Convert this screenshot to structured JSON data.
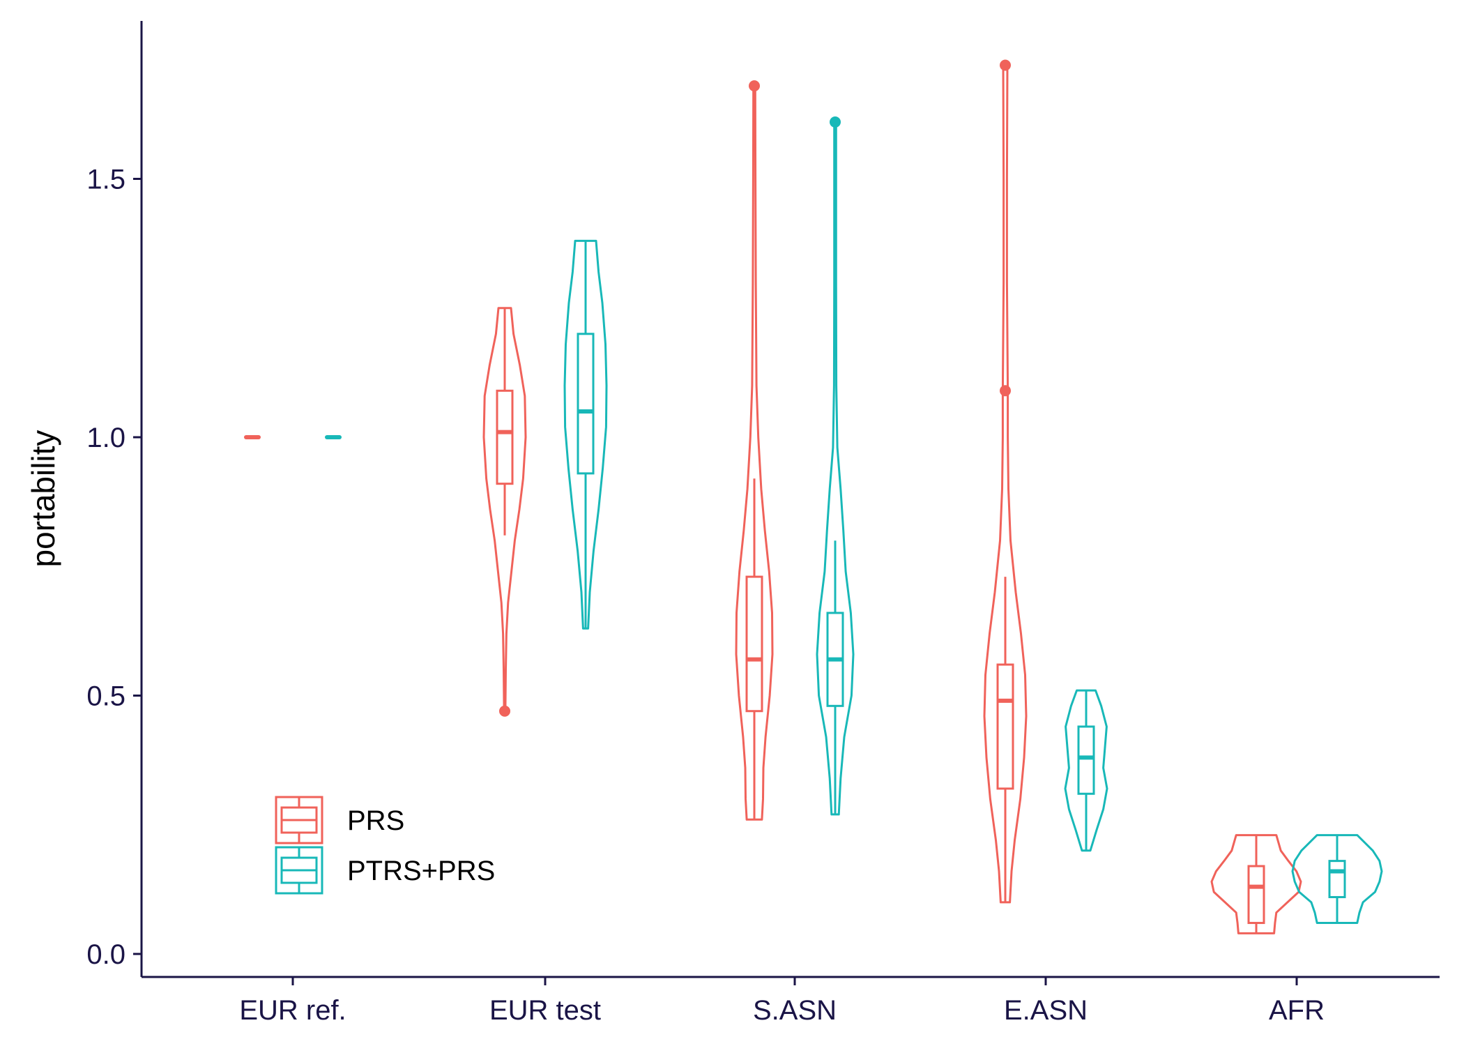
{
  "chart_data": {
    "type": "violin",
    "title": "",
    "xlabel": "",
    "ylabel": "portability",
    "ylim": [
      -0.04,
      1.75
    ],
    "yticks": [
      0.0,
      0.5,
      1.0,
      1.5
    ],
    "ytick_labels": [
      "0.0",
      "0.5",
      "1.0",
      "1.5"
    ],
    "grid": false,
    "legend_position": "bottom-left",
    "categories": [
      "EUR ref.",
      "EUR test",
      "S.ASN",
      "E.ASN",
      "AFR"
    ],
    "series": [
      {
        "name": "PRS",
        "color": "#F0625A",
        "groups": [
          {
            "category": "EUR ref.",
            "min": 1.0,
            "q1": 1.0,
            "median": 1.0,
            "q3": 1.0,
            "max": 1.0,
            "whisker_low": 1.0,
            "whisker_high": 1.0,
            "outliers": [],
            "density": [
              [
                1.0,
                0.1
              ]
            ]
          },
          {
            "category": "EUR test",
            "min": 0.47,
            "q1": 0.91,
            "median": 1.01,
            "q3": 1.09,
            "max": 1.25,
            "whisker_low": 0.81,
            "whisker_high": 1.25,
            "outliers": [
              0.47
            ],
            "density": [
              [
                0.47,
                0.03
              ],
              [
                0.55,
                0.05
              ],
              [
                0.62,
                0.08
              ],
              [
                0.68,
                0.16
              ],
              [
                0.74,
                0.32
              ],
              [
                0.8,
                0.48
              ],
              [
                0.86,
                0.7
              ],
              [
                0.92,
                0.88
              ],
              [
                1.0,
                1.0
              ],
              [
                1.08,
                0.96
              ],
              [
                1.14,
                0.72
              ],
              [
                1.2,
                0.42
              ],
              [
                1.25,
                0.3
              ]
            ]
          },
          {
            "category": "S.ASN",
            "min": 0.26,
            "q1": 0.47,
            "median": 0.57,
            "q3": 0.73,
            "max": 1.68,
            "whisker_low": 0.26,
            "whisker_high": 0.92,
            "outliers": [
              1.68
            ],
            "density": [
              [
                0.26,
                0.42
              ],
              [
                0.3,
                0.48
              ],
              [
                0.36,
                0.5
              ],
              [
                0.42,
                0.62
              ],
              [
                0.5,
                0.85
              ],
              [
                0.58,
                1.0
              ],
              [
                0.66,
                0.98
              ],
              [
                0.74,
                0.82
              ],
              [
                0.82,
                0.58
              ],
              [
                0.9,
                0.38
              ],
              [
                1.0,
                0.22
              ],
              [
                1.1,
                0.12
              ],
              [
                1.3,
                0.08
              ],
              [
                1.5,
                0.06
              ],
              [
                1.68,
                0.05
              ]
            ]
          },
          {
            "category": "E.ASN",
            "min": 0.1,
            "q1": 0.32,
            "median": 0.49,
            "q3": 0.56,
            "max": 1.72,
            "whisker_low": 0.1,
            "whisker_high": 0.73,
            "outliers": [
              1.09,
              1.72
            ],
            "density": [
              [
                0.1,
                0.22
              ],
              [
                0.16,
                0.3
              ],
              [
                0.22,
                0.45
              ],
              [
                0.3,
                0.72
              ],
              [
                0.38,
                0.9
              ],
              [
                0.46,
                1.0
              ],
              [
                0.54,
                0.95
              ],
              [
                0.62,
                0.75
              ],
              [
                0.7,
                0.5
              ],
              [
                0.8,
                0.25
              ],
              [
                0.9,
                0.15
              ],
              [
                1.0,
                0.12
              ],
              [
                1.09,
                0.12
              ],
              [
                1.3,
                0.08
              ],
              [
                1.5,
                0.08
              ],
              [
                1.72,
                0.1
              ]
            ]
          },
          {
            "category": "AFR",
            "min": 0.04,
            "q1": 0.06,
            "median": 0.13,
            "q3": 0.17,
            "max": 0.23,
            "whisker_low": 0.04,
            "whisker_high": 0.23,
            "outliers": [],
            "density": [
              [
                0.04,
                0.4
              ],
              [
                0.06,
                0.42
              ],
              [
                0.08,
                0.45
              ],
              [
                0.1,
                0.7
              ],
              [
                0.12,
                0.95
              ],
              [
                0.14,
                1.0
              ],
              [
                0.16,
                0.9
              ],
              [
                0.18,
                0.72
              ],
              [
                0.2,
                0.55
              ],
              [
                0.23,
                0.45
              ]
            ]
          }
        ]
      },
      {
        "name": "PTRS+PRS",
        "color": "#18B8B8",
        "groups": [
          {
            "category": "EUR ref.",
            "min": 1.0,
            "q1": 1.0,
            "median": 1.0,
            "q3": 1.0,
            "max": 1.0,
            "whisker_low": 1.0,
            "whisker_high": 1.0,
            "outliers": [],
            "density": [
              [
                1.0,
                0.1
              ]
            ]
          },
          {
            "category": "EUR test",
            "min": 0.63,
            "q1": 0.93,
            "median": 1.05,
            "q3": 1.2,
            "max": 1.38,
            "whisker_low": 0.63,
            "whisker_high": 1.38,
            "outliers": [],
            "density": [
              [
                0.63,
                0.12
              ],
              [
                0.7,
                0.2
              ],
              [
                0.78,
                0.38
              ],
              [
                0.86,
                0.62
              ],
              [
                0.94,
                0.82
              ],
              [
                1.02,
                0.98
              ],
              [
                1.1,
                1.0
              ],
              [
                1.18,
                0.95
              ],
              [
                1.26,
                0.8
              ],
              [
                1.32,
                0.62
              ],
              [
                1.38,
                0.5
              ]
            ]
          },
          {
            "category": "S.ASN",
            "min": 0.27,
            "q1": 0.48,
            "median": 0.57,
            "q3": 0.66,
            "max": 1.61,
            "whisker_low": 0.27,
            "whisker_high": 0.8,
            "outliers": [
              1.61
            ],
            "density": [
              [
                0.27,
                0.2
              ],
              [
                0.34,
                0.3
              ],
              [
                0.42,
                0.5
              ],
              [
                0.5,
                0.9
              ],
              [
                0.58,
                1.0
              ],
              [
                0.66,
                0.86
              ],
              [
                0.74,
                0.58
              ],
              [
                0.82,
                0.45
              ],
              [
                0.9,
                0.3
              ],
              [
                0.98,
                0.12
              ],
              [
                1.1,
                0.06
              ],
              [
                1.3,
                0.05
              ],
              [
                1.5,
                0.05
              ],
              [
                1.61,
                0.05
              ]
            ]
          },
          {
            "category": "E.ASN",
            "min": 0.2,
            "q1": 0.31,
            "median": 0.38,
            "q3": 0.44,
            "max": 0.51,
            "whisker_low": 0.2,
            "whisker_high": 0.51,
            "outliers": [],
            "density": [
              [
                0.2,
                0.2
              ],
              [
                0.24,
                0.5
              ],
              [
                0.28,
                0.82
              ],
              [
                0.32,
                1.0
              ],
              [
                0.36,
                0.82
              ],
              [
                0.4,
                0.9
              ],
              [
                0.44,
                0.98
              ],
              [
                0.48,
                0.72
              ],
              [
                0.51,
                0.45
              ]
            ]
          },
          {
            "category": "AFR",
            "min": 0.06,
            "q1": 0.11,
            "median": 0.16,
            "q3": 0.18,
            "max": 0.23,
            "whisker_low": 0.06,
            "whisker_high": 0.23,
            "outliers": [],
            "density": [
              [
                0.06,
                0.45
              ],
              [
                0.08,
                0.5
              ],
              [
                0.1,
                0.58
              ],
              [
                0.12,
                0.85
              ],
              [
                0.14,
                0.95
              ],
              [
                0.16,
                1.0
              ],
              [
                0.18,
                0.95
              ],
              [
                0.2,
                0.8
              ],
              [
                0.23,
                0.45
              ]
            ]
          }
        ]
      }
    ]
  }
}
